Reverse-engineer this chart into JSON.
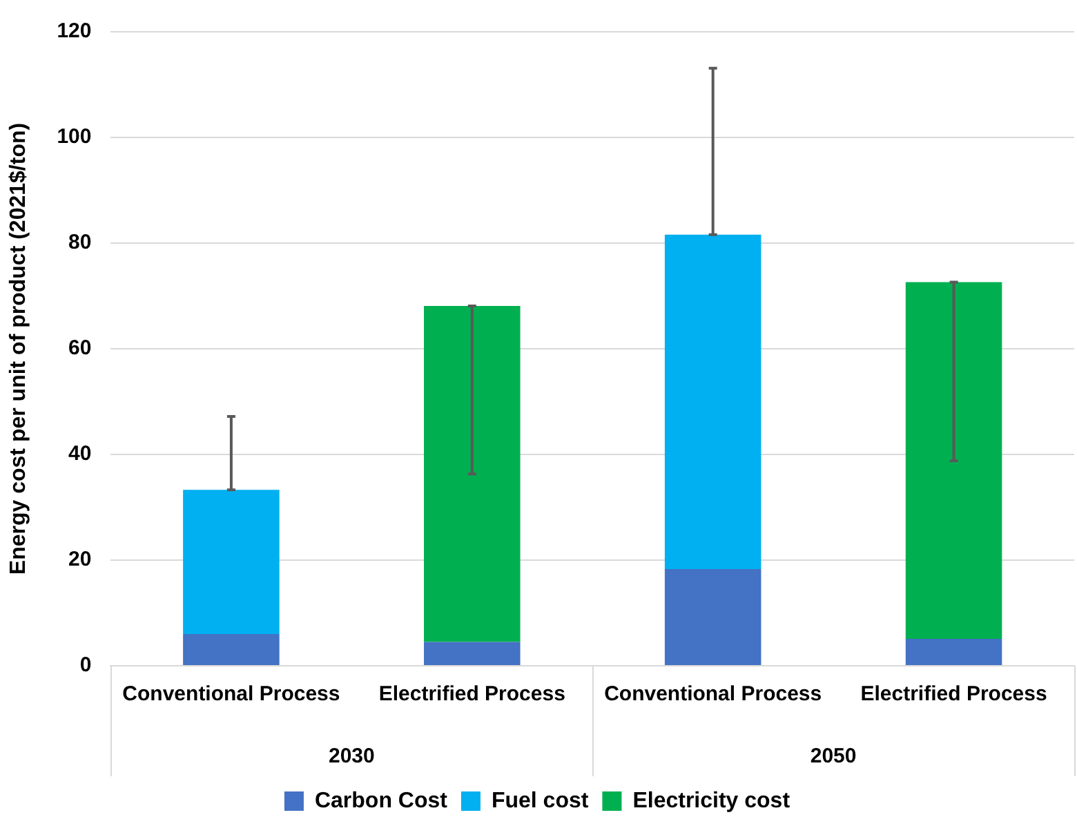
{
  "chart_data": {
    "type": "bar",
    "stacked": true,
    "ylabel": "Energy cost per unit of product (2021$/ton)",
    "categories": [
      "Conventional Process",
      "Electrified Process",
      "Conventional Process",
      "Electrified Process"
    ],
    "annotations": [
      "2030",
      "2050"
    ],
    "series": [
      {
        "name": "Carbon Cost",
        "color": "#4472c4",
        "values": [
          6.0,
          4.5,
          18.3,
          5.1
        ]
      },
      {
        "name": "Fuel cost",
        "color": "#00b0f0",
        "values": [
          27.3,
          null,
          63.3,
          null
        ],
        "errors": [
          [
            33.3,
            47.2
          ],
          null,
          [
            81.6,
            113.1
          ],
          null
        ]
      },
      {
        "name": "Electricity cost",
        "color": "#00b050",
        "values": [
          null,
          63.6,
          null,
          67.5
        ],
        "errors": [
          null,
          [
            36.3,
            68.1
          ],
          null,
          [
            38.8,
            72.6
          ]
        ]
      }
    ],
    "ylim": [
      0,
      120
    ],
    "yticks": [
      0,
      20,
      40,
      60,
      80,
      100,
      120
    ],
    "grid": "y",
    "legend": "bottom"
  }
}
